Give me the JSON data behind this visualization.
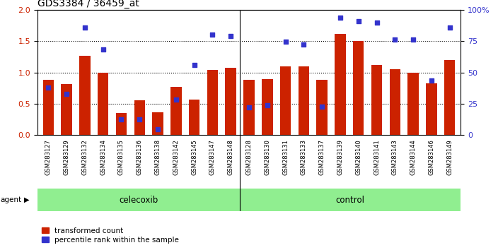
{
  "title": "GDS3384 / 36459_at",
  "samples": [
    "GSM283127",
    "GSM283129",
    "GSM283132",
    "GSM283134",
    "GSM283135",
    "GSM283136",
    "GSM283138",
    "GSM283142",
    "GSM283145",
    "GSM283147",
    "GSM283148",
    "GSM283128",
    "GSM283130",
    "GSM283131",
    "GSM283133",
    "GSM283137",
    "GSM283139",
    "GSM283140",
    "GSM283141",
    "GSM283143",
    "GSM283144",
    "GSM283146",
    "GSM283149"
  ],
  "red_values": [
    0.88,
    0.82,
    1.27,
    1.0,
    0.35,
    0.55,
    0.36,
    0.77,
    0.57,
    1.04,
    1.08,
    0.88,
    0.9,
    1.1,
    1.1,
    0.88,
    1.62,
    1.5,
    1.12,
    1.05,
    1.0,
    0.83,
    1.2
  ],
  "blue_values": [
    0.76,
    0.66,
    1.72,
    1.37,
    0.25,
    0.25,
    0.09,
    0.57,
    1.12,
    1.61,
    1.58,
    0.44,
    0.48,
    1.49,
    1.45,
    0.45,
    1.88,
    1.82,
    1.8,
    1.53,
    1.53,
    0.87,
    1.72
  ],
  "celecoxib_count": 11,
  "control_count": 12,
  "ylim_left": [
    0,
    2
  ],
  "ylim_right": [
    0,
    100
  ],
  "yticks_left": [
    0,
    0.5,
    1.0,
    1.5,
    2.0
  ],
  "yticks_right": [
    0,
    25,
    50,
    75,
    100
  ],
  "bar_color": "#CC2200",
  "dot_color": "#3333CC",
  "celecoxib_label": "celecoxib",
  "control_label": "control",
  "agent_label": "agent",
  "legend_red": "transformed count",
  "legend_blue": "percentile rank within the sample",
  "agent_bg": "#90EE90",
  "xtick_bg": "#C8C8C8"
}
